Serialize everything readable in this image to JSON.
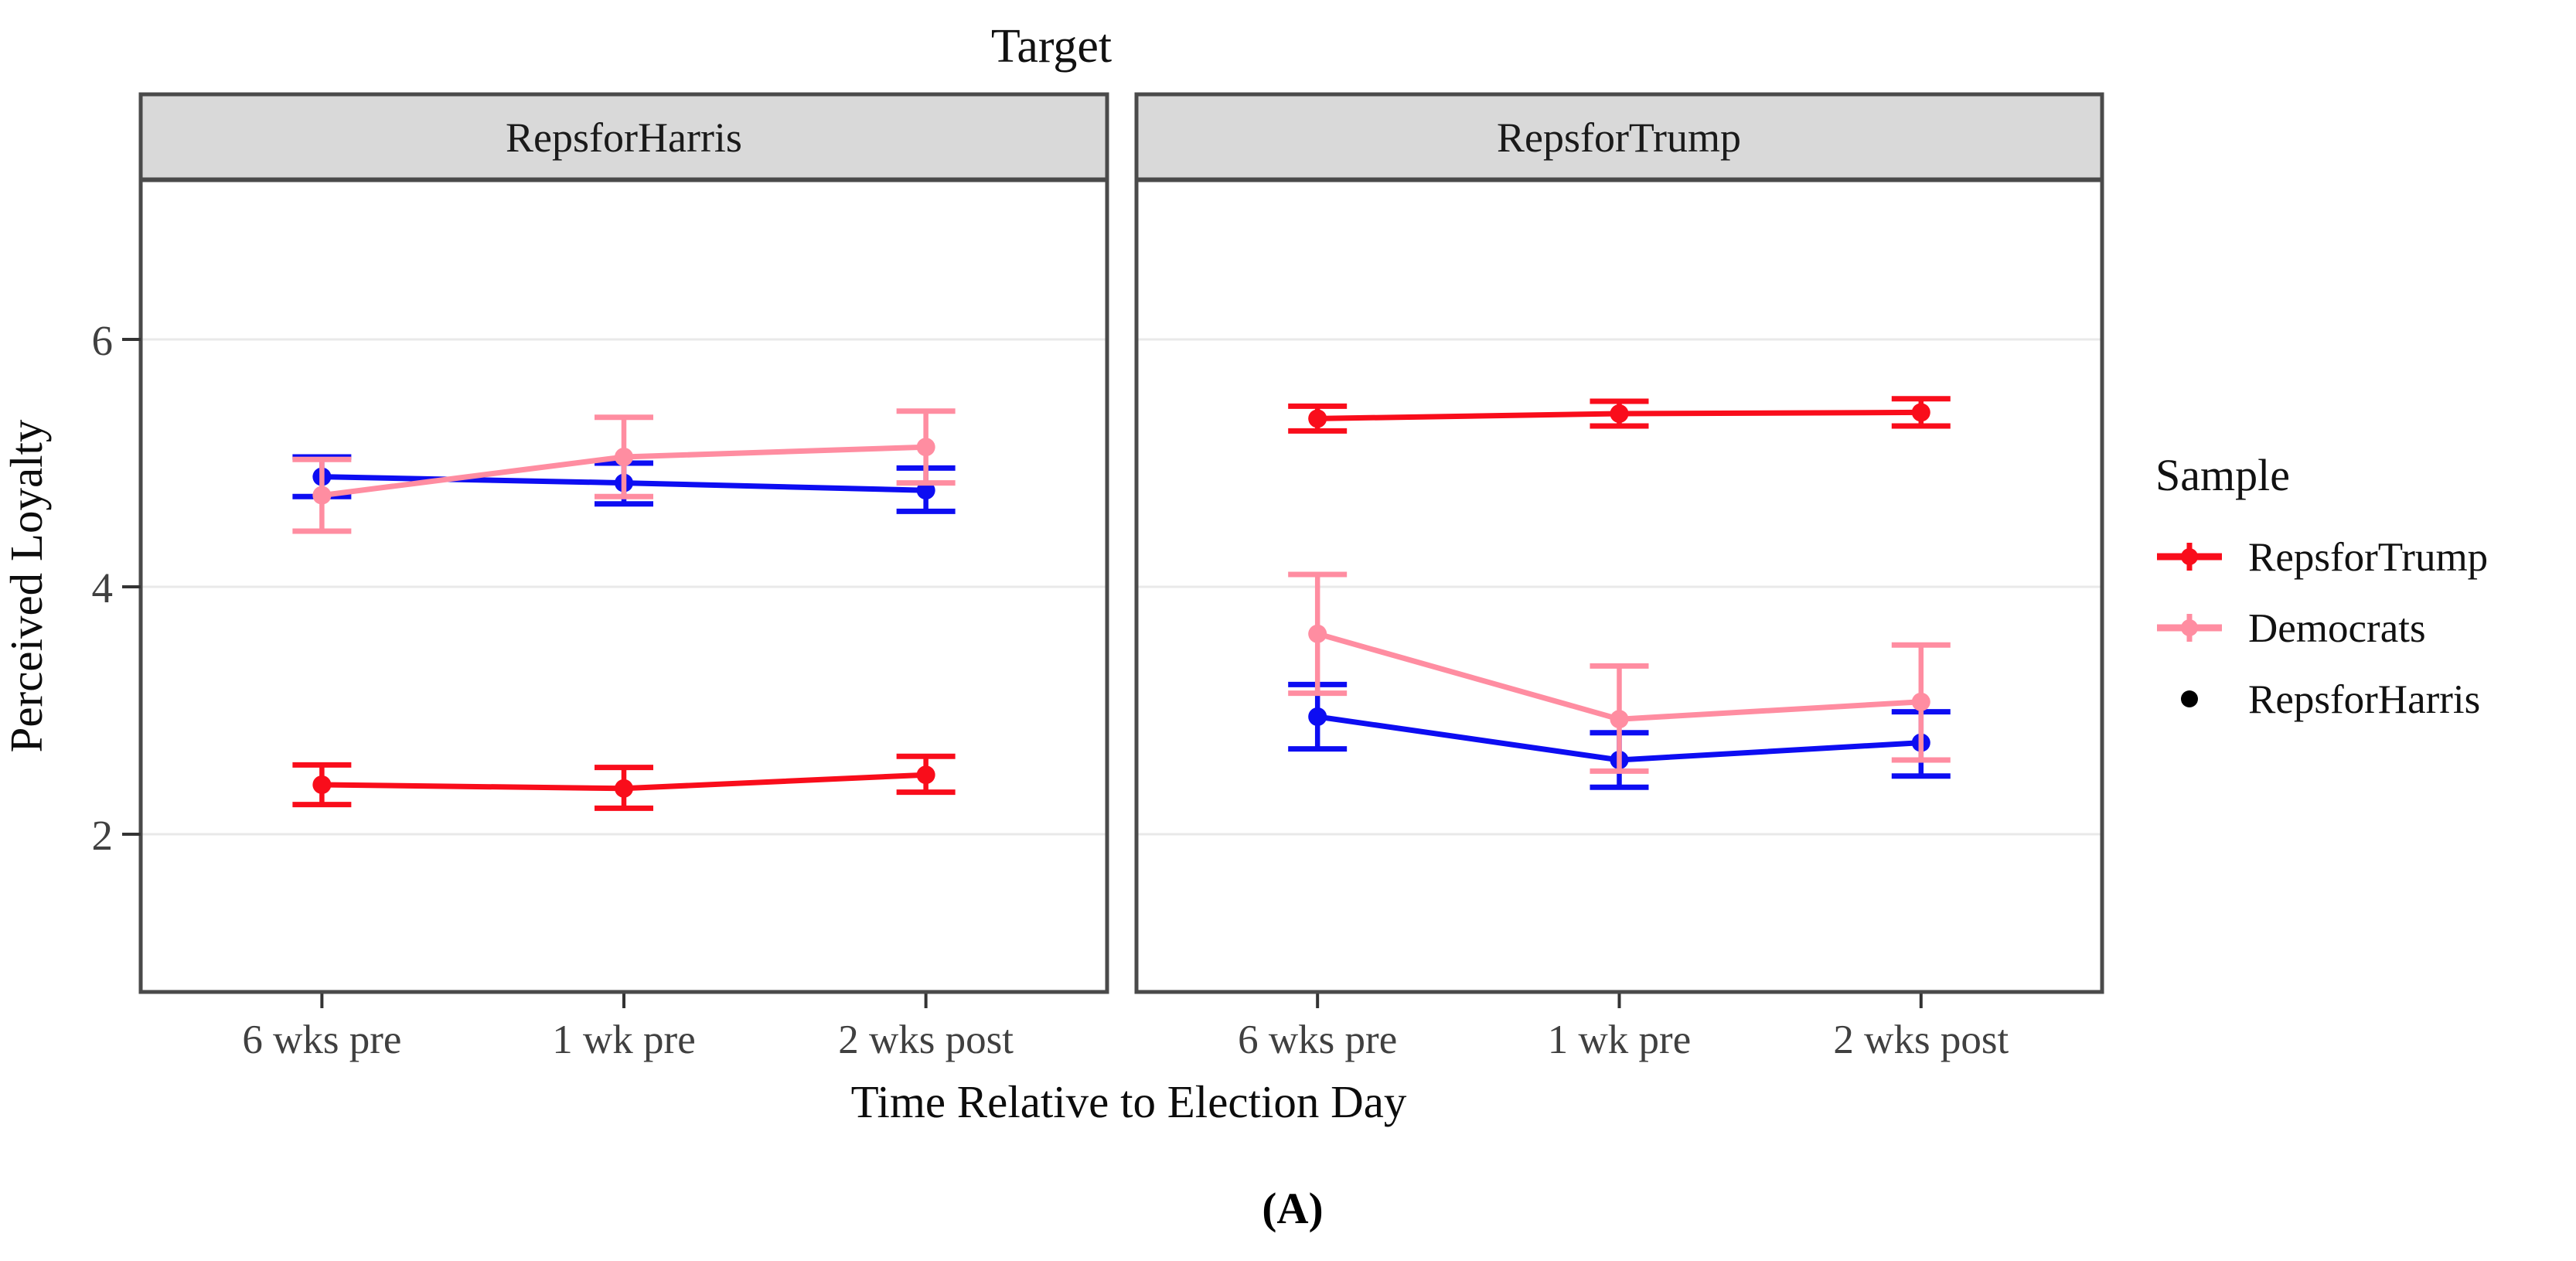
{
  "figure": {
    "title": "Target",
    "caption": "(A)"
  },
  "axes": {
    "y_label": "Perceived Loyalty",
    "x_label": "Time Relative to Election Day",
    "y_tick_labels": [
      "6",
      "4",
      "2"
    ],
    "x_tick_labels": [
      "6 wks pre",
      "1 wk pre",
      "2 wks post"
    ]
  },
  "legend": {
    "title": "Sample",
    "entries": [
      {
        "label": "RepsforTrump",
        "color": "#F90D1B"
      },
      {
        "label": "Democrats",
        "color": "#0D0DF2"
      },
      {
        "label": "RepsforHarris",
        "color": "#FF8DA1"
      }
    ]
  },
  "style": {
    "grid_color": "#E9E9E9",
    "strip_fill": "#D9D9D9",
    "border_color": "#4A4A4A",
    "tick_color": "#333333",
    "background": "#FFFFFF"
  },
  "chart_data": {
    "type": "line",
    "subtype": "pointrange-with-errorbars",
    "title": "Target",
    "facet_variable": "Target",
    "x": [
      "6 wks pre",
      "1 wk pre",
      "2 wks post"
    ],
    "xlabel": "Time Relative to Election Day",
    "ylabel": "Perceived Loyalty",
    "ylim": [
      0.7,
      7.3
    ],
    "y_ticks": [
      2,
      4,
      6
    ],
    "grid": "major-horizontal",
    "legend_title": "Sample",
    "legend_position": "right",
    "facets": [
      {
        "label": "RepsforHarris",
        "series": [
          {
            "name": "RepsforTrump",
            "color": "#F90D1B",
            "values": [
              2.4,
              2.37,
              2.48
            ],
            "lower": [
              2.24,
              2.21,
              2.34
            ],
            "upper": [
              2.56,
              2.54,
              2.63
            ]
          },
          {
            "name": "Democrats",
            "color": "#0D0DF2",
            "values": [
              4.89,
              4.84,
              4.78
            ],
            "lower": [
              4.73,
              4.67,
              4.61
            ],
            "upper": [
              5.05,
              5.0,
              4.96
            ]
          },
          {
            "name": "RepsforHarris",
            "color": "#FF8DA1",
            "values": [
              4.74,
              5.05,
              5.13
            ],
            "lower": [
              4.45,
              4.73,
              4.84
            ],
            "upper": [
              5.03,
              5.37,
              5.42
            ]
          }
        ]
      },
      {
        "label": "RepsforTrump",
        "series": [
          {
            "name": "RepsforTrump",
            "color": "#F90D1B",
            "values": [
              5.36,
              5.4,
              5.41
            ],
            "lower": [
              5.26,
              5.3,
              5.3
            ],
            "upper": [
              5.46,
              5.5,
              5.52
            ]
          },
          {
            "name": "Democrats",
            "color": "#0D0DF2",
            "values": [
              2.95,
              2.6,
              2.74
            ],
            "lower": [
              2.69,
              2.38,
              2.47
            ],
            "upper": [
              3.21,
              2.82,
              2.99
            ]
          },
          {
            "name": "RepsforHarris",
            "color": "#FF8DA1",
            "values": [
              3.62,
              2.93,
              3.07
            ],
            "lower": [
              3.14,
              2.51,
              2.6
            ],
            "upper": [
              4.1,
              3.36,
              3.53
            ]
          }
        ]
      }
    ]
  }
}
